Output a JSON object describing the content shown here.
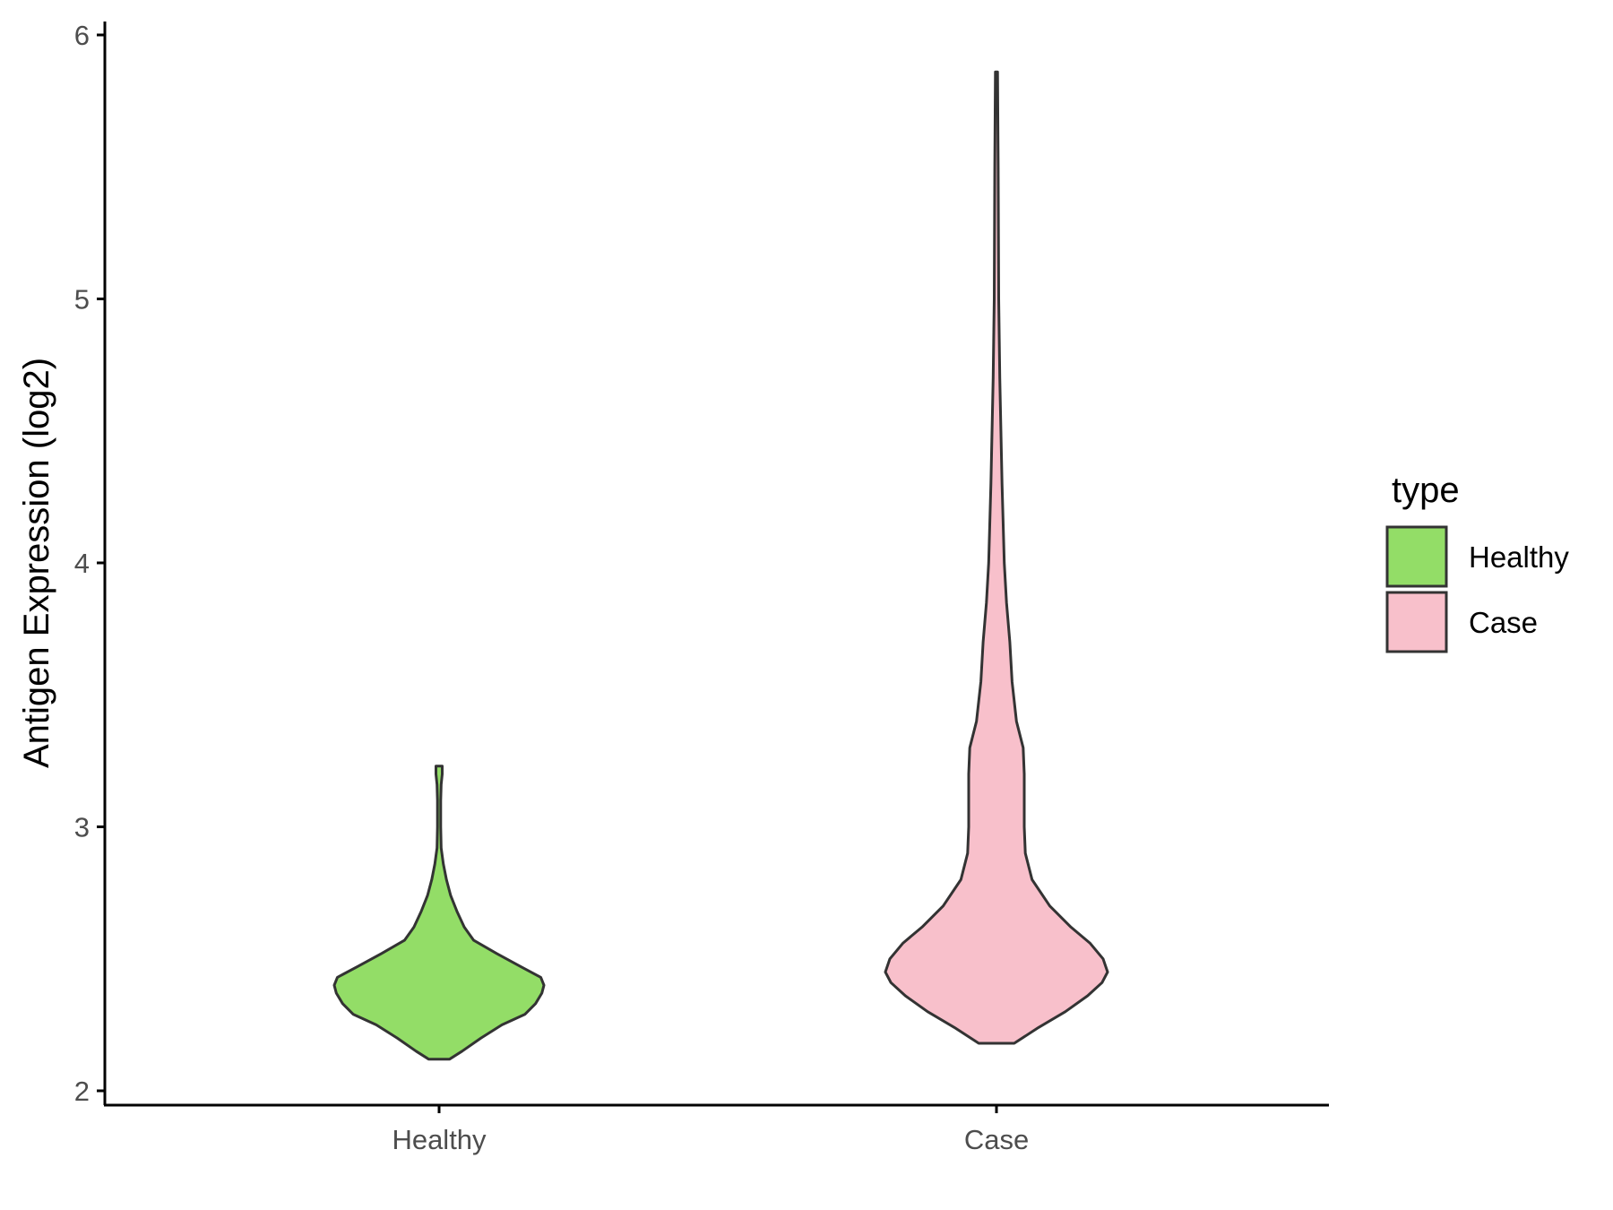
{
  "chart_data": {
    "type": "violin",
    "ylabel": "Antigen Expression (log2)",
    "xlabel": "",
    "ylim": [
      1.95,
      6.05
    ],
    "y_ticks": [
      2,
      3,
      4,
      5,
      6
    ],
    "categories": [
      "Healthy",
      "Case"
    ],
    "grid": false,
    "legend": {
      "title": "type",
      "placement": "right",
      "entries": [
        {
          "label": "Healthy",
          "color": "#93dd67"
        },
        {
          "label": "Case",
          "color": "#f8c0cb"
        }
      ]
    },
    "series": [
      {
        "category": "Healthy",
        "color": "#93dd67",
        "y_min": 2.12,
        "y_max": 3.23,
        "density_profile": [
          [
            2.12,
            0.1
          ],
          [
            2.15,
            0.22
          ],
          [
            2.2,
            0.4
          ],
          [
            2.25,
            0.6
          ],
          [
            2.29,
            0.82
          ],
          [
            2.33,
            0.92
          ],
          [
            2.37,
            0.98
          ],
          [
            2.4,
            1.0
          ],
          [
            2.43,
            0.97
          ],
          [
            2.47,
            0.78
          ],
          [
            2.52,
            0.55
          ],
          [
            2.57,
            0.33
          ],
          [
            2.62,
            0.24
          ],
          [
            2.68,
            0.17
          ],
          [
            2.74,
            0.11
          ],
          [
            2.8,
            0.07
          ],
          [
            2.86,
            0.04
          ],
          [
            2.92,
            0.02
          ],
          [
            3.0,
            0.015
          ],
          [
            3.1,
            0.015
          ],
          [
            3.16,
            0.02
          ],
          [
            3.2,
            0.03
          ],
          [
            3.23,
            0.03
          ]
        ]
      },
      {
        "category": "Case",
        "color": "#f8c0cb",
        "y_min": 2.18,
        "y_max": 5.86,
        "density_profile": [
          [
            2.18,
            0.16
          ],
          [
            2.24,
            0.38
          ],
          [
            2.3,
            0.62
          ],
          [
            2.36,
            0.82
          ],
          [
            2.41,
            0.95
          ],
          [
            2.45,
            1.0
          ],
          [
            2.5,
            0.96
          ],
          [
            2.56,
            0.84
          ],
          [
            2.62,
            0.67
          ],
          [
            2.7,
            0.48
          ],
          [
            2.8,
            0.32
          ],
          [
            2.9,
            0.26
          ],
          [
            3.0,
            0.25
          ],
          [
            3.1,
            0.25
          ],
          [
            3.2,
            0.25
          ],
          [
            3.3,
            0.24
          ],
          [
            3.4,
            0.18
          ],
          [
            3.55,
            0.14
          ],
          [
            3.7,
            0.12
          ],
          [
            3.85,
            0.09
          ],
          [
            4.0,
            0.07
          ],
          [
            4.3,
            0.05
          ],
          [
            4.7,
            0.03
          ],
          [
            5.0,
            0.02
          ],
          [
            5.5,
            0.015
          ],
          [
            5.86,
            0.01
          ]
        ]
      }
    ]
  }
}
